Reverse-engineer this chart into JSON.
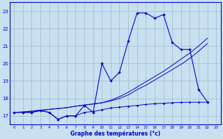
{
  "x": [
    0,
    1,
    2,
    3,
    4,
    5,
    6,
    7,
    8,
    9,
    10,
    11,
    12,
    13,
    14,
    15,
    16,
    17,
    18,
    19,
    20,
    21,
    22,
    23
  ],
  "y_actual": [
    17.2,
    17.2,
    17.2,
    17.3,
    17.2,
    16.8,
    17.0,
    17.0,
    17.6,
    17.2,
    20.0,
    19.0,
    19.5,
    21.3,
    22.9,
    22.9,
    22.6,
    22.8,
    21.2,
    20.8,
    20.8,
    18.5,
    17.8,
    null
  ],
  "y_trend1": [
    17.2,
    17.22,
    17.27,
    17.32,
    17.37,
    17.42,
    17.47,
    17.55,
    17.62,
    17.68,
    17.75,
    17.85,
    18.0,
    18.2,
    18.5,
    18.75,
    19.05,
    19.35,
    19.65,
    19.95,
    20.3,
    20.7,
    21.15,
    null
  ],
  "y_trend2": [
    17.2,
    17.22,
    17.27,
    17.32,
    17.37,
    17.42,
    17.47,
    17.55,
    17.62,
    17.68,
    17.75,
    17.9,
    18.1,
    18.35,
    18.65,
    18.95,
    19.25,
    19.55,
    19.9,
    20.25,
    20.6,
    21.0,
    21.45,
    null
  ],
  "y_min": [
    17.2,
    17.2,
    17.2,
    17.3,
    17.2,
    16.8,
    17.0,
    17.0,
    17.2,
    17.25,
    17.35,
    17.45,
    17.5,
    17.55,
    17.6,
    17.65,
    17.7,
    17.72,
    17.75,
    17.77,
    17.78,
    17.78,
    17.78,
    null
  ],
  "ylim": [
    16.5,
    23.5
  ],
  "yticks": [
    17,
    18,
    19,
    20,
    21,
    22,
    23
  ],
  "xlim": [
    -0.5,
    23.5
  ],
  "bg_color": "#c8e0f0",
  "grid_color": "#a0b8cc",
  "line_color": "#0000cc",
  "xlabel": "Graphe des températures (°c)"
}
